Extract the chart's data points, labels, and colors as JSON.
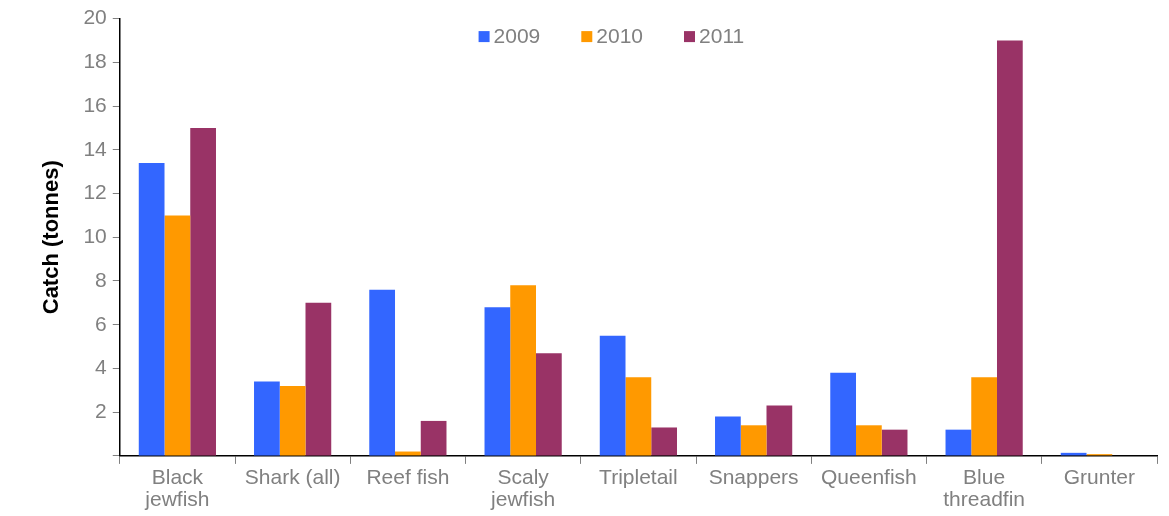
{
  "chart_data": {
    "type": "bar",
    "ylabel": "Catch (tonnes)",
    "categories": [
      "Black jewfish",
      "Shark (all)",
      "Reef fish",
      "Scaly jewfish",
      "Tripletail",
      "Snappers",
      "Queenfish",
      "Blue threadfin",
      "Grunter"
    ],
    "series": [
      {
        "name": "2009",
        "color": "#3366ff",
        "values": [
          13.4,
          3.4,
          7.6,
          6.8,
          5.5,
          1.8,
          3.8,
          1.2,
          0.14
        ]
      },
      {
        "name": "2010",
        "color": "#ff9900",
        "values": [
          11.0,
          3.2,
          0.2,
          7.8,
          3.6,
          1.4,
          1.4,
          3.6,
          0.08
        ]
      },
      {
        "name": "2011",
        "color": "#993366",
        "values": [
          15.0,
          7.0,
          1.6,
          4.7,
          1.3,
          2.3,
          1.2,
          19.0,
          null
        ]
      }
    ],
    "ylim": [
      0,
      20
    ],
    "yticks": [
      {
        "value": 0,
        "label": null
      },
      2,
      4,
      6,
      8,
      10,
      12,
      14,
      16,
      18,
      20
    ],
    "legend": "top"
  }
}
